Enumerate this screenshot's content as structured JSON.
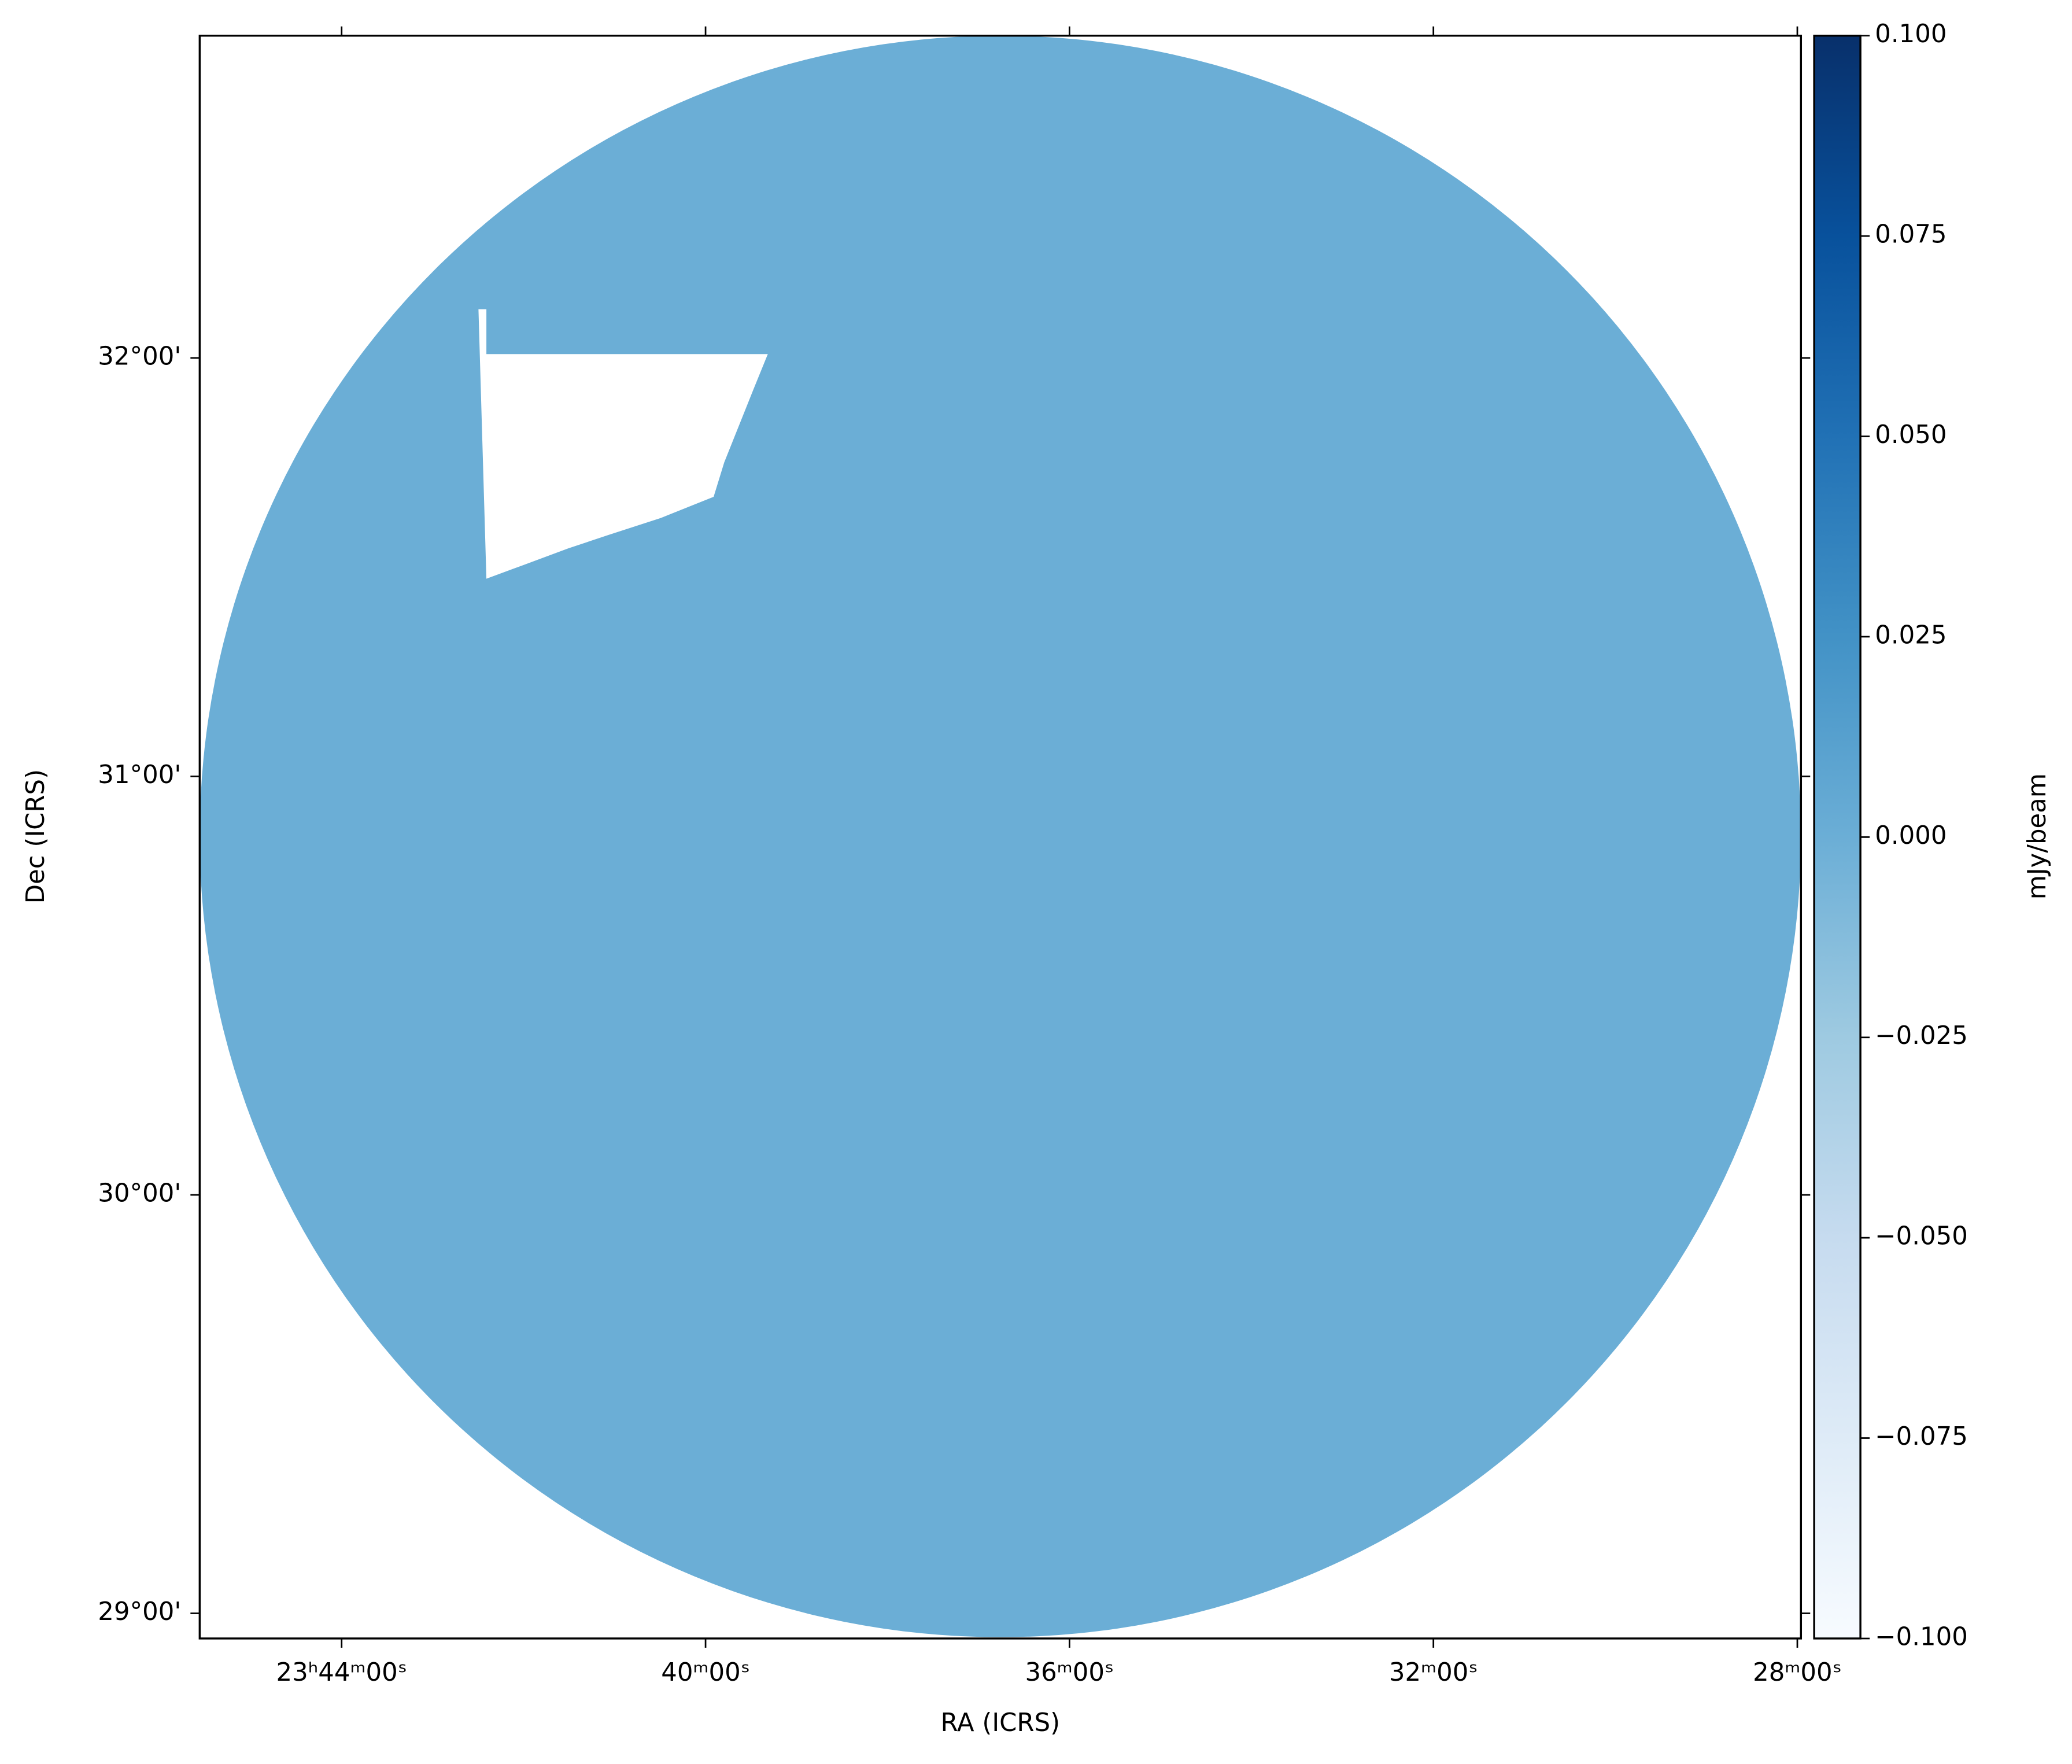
{
  "chart_data": {
    "type": "image",
    "x_label": "RA (ICRS)",
    "y_label": "Dec (ICRS)",
    "xlim": [
      356.39,
      351.99
    ],
    "ylim": [
      28.94,
      32.77
    ],
    "xticks": [
      {
        "value": 356,
        "label": "23ʰ44ᵐ00ˢ"
      },
      {
        "value": 355,
        "label": "40ᵐ00ˢ"
      },
      {
        "value": 354,
        "label": "36ᵐ00ˢ"
      },
      {
        "value": 353,
        "label": "32ᵐ00ˢ"
      },
      {
        "value": 352,
        "label": "28ᵐ00ˢ"
      }
    ],
    "yticks": [
      {
        "value": 29,
        "label": "29°00'"
      },
      {
        "value": 30,
        "label": "30°00'"
      },
      {
        "value": 31,
        "label": "31°00'"
      },
      {
        "value": 32,
        "label": "32°00'"
      }
    ],
    "image_color": "#6baed6",
    "colorbar": {
      "label": "mJy/beam",
      "lim": [
        -0.1,
        0.1
      ],
      "colors": [
        "#f7fbff",
        "#deebf7",
        "#c6dbef",
        "#9ecae1",
        "#6baed6",
        "#4292c6",
        "#2171b5",
        "#08519c",
        "#08306b"
      ],
      "ticks": [
        {
          "value": -0.1,
          "label": "−0.100"
        },
        {
          "value": -0.075,
          "label": "−0.075"
        },
        {
          "value": -0.05,
          "label": "−0.050"
        },
        {
          "value": -0.025,
          "label": "−0.025"
        },
        {
          "value": 0,
          "label": "0.000"
        },
        {
          "value": 0.025,
          "label": "0.025"
        },
        {
          "value": 0.05,
          "label": "0.050"
        },
        {
          "value": 0.075,
          "label": "0.075"
        },
        {
          "value": 0.1,
          "label": "0.100"
        }
      ]
    }
  }
}
